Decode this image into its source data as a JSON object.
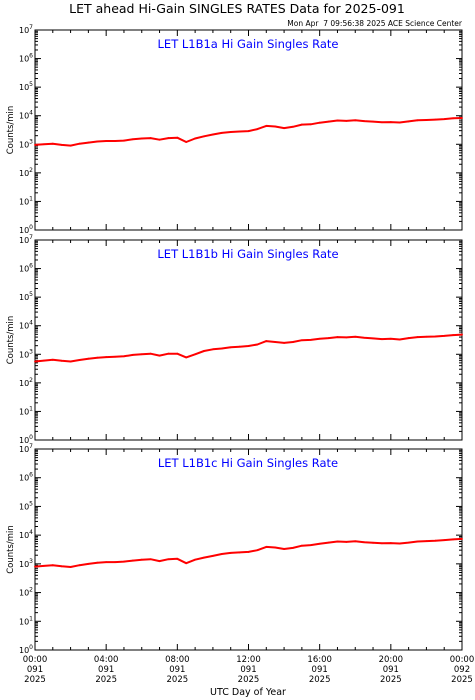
{
  "header": {
    "title": "LET ahead Hi-Gain SINGLES RATES Data for 2025-091",
    "timestamp": "Mon Apr  7 09:56:38 2025 ACE Science Center"
  },
  "colors": {
    "series": "#ff0000",
    "panel_title": "#0000ff",
    "axes": "#000000"
  },
  "chart_data": [
    {
      "type": "line",
      "title": "LET L1B1a Hi Gain Singles Rate",
      "ylabel": "Counts/min",
      "xlabel": "",
      "yscale": "log",
      "ylim": [
        1,
        10000000
      ],
      "xlim": [
        0,
        24
      ],
      "grid": false,
      "series": [
        {
          "x": [
            0.0,
            0.5,
            1.0,
            1.5,
            2.0,
            2.5,
            3.0,
            3.5,
            4.0,
            4.5,
            5.0,
            5.5,
            6.0,
            6.5,
            7.0,
            7.5,
            8.0,
            8.5,
            9.0,
            9.5,
            10.0,
            10.5,
            11.0,
            11.5,
            12.0,
            12.5,
            13.0,
            13.5,
            14.0,
            14.5,
            15.0,
            15.5,
            16.0,
            16.5,
            17.0,
            17.5,
            18.0,
            18.5,
            19.0,
            19.5,
            20.0,
            20.5,
            21.0,
            21.5,
            22.0,
            22.5,
            23.0,
            23.5,
            24.0
          ],
          "values": [
            950,
            1000,
            1050,
            950,
            900,
            1050,
            1150,
            1250,
            1300,
            1300,
            1350,
            1500,
            1600,
            1650,
            1450,
            1650,
            1700,
            1200,
            1600,
            1900,
            2200,
            2500,
            2700,
            2800,
            2900,
            3400,
            4400,
            4200,
            3700,
            4100,
            4900,
            5000,
            5700,
            6200,
            6800,
            6600,
            6900,
            6500,
            6200,
            5900,
            6000,
            5800,
            6300,
            6900,
            7100,
            7300,
            7600,
            8100,
            8300
          ]
        }
      ]
    },
    {
      "type": "line",
      "title": "LET L1B1b Hi Gain Singles Rate",
      "ylabel": "Counts/min",
      "xlabel": "",
      "yscale": "log",
      "ylim": [
        1,
        10000000
      ],
      "xlim": [
        0,
        24
      ],
      "grid": false,
      "series": [
        {
          "x": [
            0.0,
            0.5,
            1.0,
            1.5,
            2.0,
            2.5,
            3.0,
            3.5,
            4.0,
            4.5,
            5.0,
            5.5,
            6.0,
            6.5,
            7.0,
            7.5,
            8.0,
            8.5,
            9.0,
            9.5,
            10.0,
            10.5,
            11.0,
            11.5,
            12.0,
            12.5,
            13.0,
            13.5,
            14.0,
            14.5,
            15.0,
            15.5,
            16.0,
            16.5,
            17.0,
            17.5,
            18.0,
            18.5,
            19.0,
            19.5,
            20.0,
            20.5,
            21.0,
            21.5,
            22.0,
            22.5,
            23.0,
            23.5,
            24.0
          ],
          "values": [
            560,
            600,
            640,
            590,
            560,
            630,
            700,
            760,
            800,
            820,
            850,
            950,
            1000,
            1050,
            900,
            1050,
            1050,
            780,
            1000,
            1300,
            1500,
            1600,
            1750,
            1850,
            1950,
            2200,
            2900,
            2700,
            2500,
            2700,
            3100,
            3200,
            3500,
            3700,
            4000,
            3900,
            4100,
            3800,
            3600,
            3400,
            3500,
            3300,
            3700,
            4000,
            4100,
            4200,
            4400,
            4700,
            4900
          ]
        }
      ]
    },
    {
      "type": "line",
      "title": "LET L1B1c Hi Gain Singles Rate",
      "ylabel": "Counts/min",
      "xlabel": "UTC Day of Year",
      "yscale": "log",
      "ylim": [
        1,
        10000000
      ],
      "xlim": [
        0,
        24
      ],
      "grid": false,
      "ticks": [
        {
          "x": 0,
          "line1": "00:00",
          "line2": "091",
          "line3": "2025"
        },
        {
          "x": 4,
          "line1": "04:00",
          "line2": "091",
          "line3": "2025"
        },
        {
          "x": 8,
          "line1": "08:00",
          "line2": "091",
          "line3": "2025"
        },
        {
          "x": 12,
          "line1": "12:00",
          "line2": "091",
          "line3": "2025"
        },
        {
          "x": 16,
          "line1": "16:00",
          "line2": "091",
          "line3": "2025"
        },
        {
          "x": 20,
          "line1": "20:00",
          "line2": "091",
          "line3": "2025"
        },
        {
          "x": 24,
          "line1": "00:00",
          "line2": "092",
          "line3": "2025"
        }
      ],
      "series": [
        {
          "x": [
            0.0,
            0.5,
            1.0,
            1.5,
            2.0,
            2.5,
            3.0,
            3.5,
            4.0,
            4.5,
            5.0,
            5.5,
            6.0,
            6.5,
            7.0,
            7.5,
            8.0,
            8.5,
            9.0,
            9.5,
            10.0,
            10.5,
            11.0,
            11.5,
            12.0,
            12.5,
            13.0,
            13.5,
            14.0,
            14.5,
            15.0,
            15.5,
            16.0,
            16.5,
            17.0,
            17.5,
            18.0,
            18.5,
            19.0,
            19.5,
            20.0,
            20.5,
            21.0,
            21.5,
            22.0,
            22.5,
            23.0,
            23.5,
            24.0
          ],
          "values": [
            800,
            850,
            900,
            820,
            780,
            900,
            1000,
            1100,
            1150,
            1150,
            1200,
            1300,
            1400,
            1450,
            1250,
            1450,
            1500,
            1050,
            1400,
            1650,
            1900,
            2200,
            2400,
            2500,
            2600,
            3000,
            3900,
            3700,
            3300,
            3600,
            4300,
            4500,
            5000,
            5500,
            6000,
            5800,
            6100,
            5700,
            5400,
            5200,
            5300,
            5100,
            5500,
            6000,
            6200,
            6400,
            6700,
            7100,
            7400
          ]
        }
      ]
    }
  ]
}
